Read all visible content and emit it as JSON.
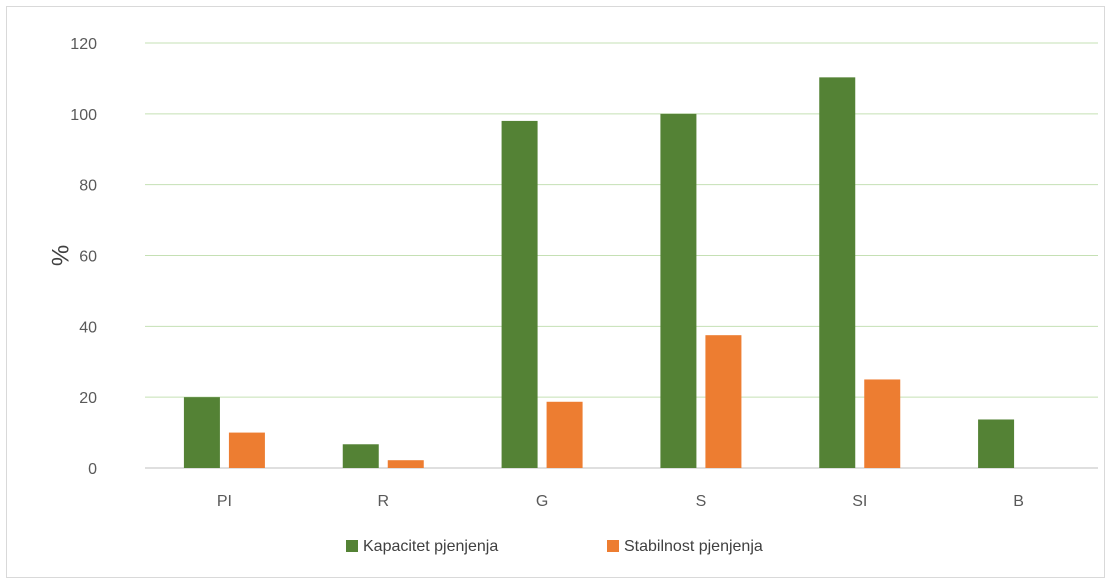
{
  "chart_data": {
    "type": "bar",
    "title": "",
    "xlabel": "",
    "ylabel": "%",
    "ylim": [
      0,
      120
    ],
    "yticks": [
      0,
      20,
      40,
      60,
      80,
      100,
      120
    ],
    "grid": true,
    "legend_position": "bottom",
    "categories": [
      "PI",
      "R",
      "G",
      "S",
      "SI",
      "B"
    ],
    "series": [
      {
        "name": "Kapacitet pjenjenja",
        "color": "#548235",
        "values": [
          20,
          6.7,
          98,
          100,
          110.3,
          13.7
        ]
      },
      {
        "name": "Stabilnost pjenjenja",
        "color": "#ED7D31",
        "values": [
          10,
          2.2,
          18.7,
          37.5,
          25,
          0
        ]
      }
    ],
    "gridline_color": "#c5e0b4"
  }
}
